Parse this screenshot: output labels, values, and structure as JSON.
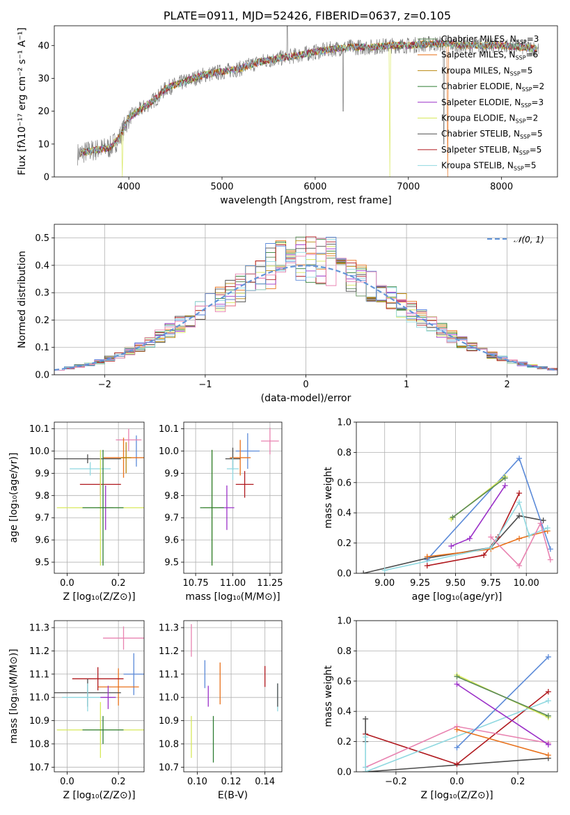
{
  "colors": {
    "Chabrier MILES": "#5b8a55",
    "Salpeter MILES": "#e8701a",
    "Kroupa MILES": "#b8860b",
    "Chabrier ELODIE": "#2e7d32",
    "Salpeter ELODIE": "#9b30c8",
    "Kroupa ELODIE": "#d7e85a",
    "Chabrier STELIB": "#4d4d4d",
    "Salpeter STELIB": "#b0191e",
    "Kroupa STELIB": "#8fd8e0",
    "extra_blue": "#5b8ad8",
    "extra_pink": "#e882b0",
    "normal_curve": "#6495d8"
  },
  "chart_data": [
    {
      "id": "spectrum",
      "type": "line",
      "title": "PLATE=0911, MJD=52426, FIBERID=0637, z=0.105",
      "xlabel": "wavelength [Angstrom, rest frame]",
      "ylabel": "Flux [fλ10⁻¹⁷ erg cm⁻² s⁻¹ A⁻¹]",
      "xlim": [
        3200,
        8600
      ],
      "ylim": [
        0,
        46
      ],
      "xticks": [
        4000,
        5000,
        6000,
        7000,
        8000
      ],
      "yticks": [
        0,
        10,
        20,
        30,
        40
      ],
      "legend_position": "top-right",
      "legend": [
        {
          "label": "Chabrier MILES, N",
          "sub": "SSP",
          "tail": "=3",
          "color": "#5b8a55"
        },
        {
          "label": "Salpeter MILES, N",
          "sub": "SSP",
          "tail": "=6",
          "color": "#e8701a"
        },
        {
          "label": "Kroupa MILES, N",
          "sub": "SSP",
          "tail": "=5",
          "color": "#b8860b"
        },
        {
          "label": "Chabrier ELODIE, N",
          "sub": "SSP",
          "tail": "=2",
          "color": "#2e7d32"
        },
        {
          "label": "Salpeter ELODIE, N",
          "sub": "SSP",
          "tail": "=3",
          "color": "#9b30c8"
        },
        {
          "label": "Kroupa ELODIE, N",
          "sub": "SSP",
          "tail": "=2",
          "color": "#d7e85a"
        },
        {
          "label": "Chabrier STELIB, N",
          "sub": "SSP",
          "tail": "=5",
          "color": "#4d4d4d"
        },
        {
          "label": "Salpeter STELIB, N",
          "sub": "SSP",
          "tail": "=5",
          "color": "#b0191e"
        },
        {
          "label": "Kroupa STELIB, N",
          "sub": "SSP",
          "tail": "=5",
          "color": "#8fd8e0"
        }
      ],
      "continuum": {
        "x": [
          3450,
          3600,
          3800,
          3900,
          4000,
          4100,
          4200,
          4300,
          4400,
          4600,
          4800,
          5000,
          5200,
          5400,
          5600,
          5800,
          6000,
          6200,
          6400,
          6600,
          6800,
          7000,
          7200,
          7400,
          7600,
          7800,
          8000,
          8200,
          8400
        ],
        "y": [
          7,
          8,
          9,
          12,
          18,
          20,
          22,
          24,
          27,
          29,
          31,
          32,
          33,
          35,
          36,
          37,
          38,
          39,
          39.5,
          39.5,
          40,
          40,
          40.5,
          40.5,
          40,
          40,
          40,
          39.5,
          39
        ]
      }
    },
    {
      "id": "residuals",
      "type": "histogram",
      "xlabel": "(data-model)/error",
      "ylabel": "Normed distribution",
      "xlim": [
        -2.5,
        2.5
      ],
      "ylim": [
        0,
        0.55
      ],
      "xticks": [
        -2,
        -1,
        0,
        1,
        2
      ],
      "yticks": [
        0,
        0.1,
        0.2,
        0.3,
        0.4,
        0.5
      ],
      "grid": true,
      "legend_position": "top-right",
      "legend": "𝒩(0, 1)",
      "bins": [
        -2.5,
        2.5,
        50
      ],
      "gaussian": {
        "mean": 0,
        "sigma": 1
      }
    },
    {
      "id": "age_vs_Z",
      "type": "scatter-errorbar",
      "xlabel": "Z [log₁₀(Z/Z⊙)]",
      "ylabel": "age  [log₁₀(age/yr)]",
      "xlim": [
        -0.05,
        0.3
      ],
      "ylim": [
        9.45,
        10.13
      ],
      "xticks": [
        0.0,
        0.2
      ],
      "yticks": [
        9.5,
        9.6,
        9.7,
        9.8,
        9.9,
        10.0,
        10.1
      ],
      "grid": true,
      "points": [
        {
          "x": 0.27,
          "y": 10.0,
          "xerr": 0.0,
          "yerr": 0.07,
          "color": "#5b8ad8"
        },
        {
          "x": 0.24,
          "y": 10.05,
          "xerr": 0.05,
          "yerr": 0.05,
          "color": "#e882b0"
        },
        {
          "x": 0.22,
          "y": 9.97,
          "xerr": 0.08,
          "yerr": 0.09,
          "color": "#e8701a"
        },
        {
          "x": 0.23,
          "y": 9.97,
          "xerr": 0.02,
          "yerr": 0.07,
          "color": "#b8860b"
        },
        {
          "x": 0.08,
          "y": 9.965,
          "xerr": 0.13,
          "yerr": 0.02,
          "color": "#4d4d4d"
        },
        {
          "x": 0.09,
          "y": 9.92,
          "xerr": 0.08,
          "yerr": 0.03,
          "color": "#8fd8e0"
        },
        {
          "x": 0.13,
          "y": 9.85,
          "xerr": 0.08,
          "yerr": 0.05,
          "color": "#b0191e"
        },
        {
          "x": 0.15,
          "y": 9.745,
          "xerr": 0.03,
          "yerr": 0.1,
          "color": "#9b30c8"
        },
        {
          "x": 0.13,
          "y": 9.745,
          "xerr": 0.17,
          "yerr": 0.26,
          "color": "#d7e85a"
        },
        {
          "x": 0.14,
          "y": 9.745,
          "xerr": 0.08,
          "yerr": 0.26,
          "color": "#2e7d32"
        }
      ]
    },
    {
      "id": "age_vs_mass",
      "type": "scatter-errorbar",
      "xlabel": "mass [log₁₀(M/M⊙)]",
      "ylabel": "",
      "xlim": [
        10.67,
        11.33
      ],
      "ylim": [
        9.45,
        10.13
      ],
      "xticks": [
        10.75,
        11.0,
        11.25
      ],
      "yticks": [
        9.5,
        9.6,
        9.7,
        9.8,
        9.9,
        10.0,
        10.1
      ],
      "grid": true,
      "points": [
        {
          "x": 11.25,
          "y": 10.045,
          "xerr": 0.06,
          "yerr": 0.06,
          "color": "#e882b0"
        },
        {
          "x": 11.1,
          "y": 10.0,
          "xerr": 0.08,
          "yerr": 0.08,
          "color": "#5b8ad8"
        },
        {
          "x": 11.05,
          "y": 9.97,
          "xerr": 0.07,
          "yerr": 0.08,
          "color": "#e8701a"
        },
        {
          "x": 11.0,
          "y": 9.965,
          "xerr": 0.05,
          "yerr": 0.05,
          "color": "#4d4d4d"
        },
        {
          "x": 11.0,
          "y": 9.92,
          "xerr": 0.04,
          "yerr": 0.05,
          "color": "#8fd8e0"
        },
        {
          "x": 11.08,
          "y": 9.85,
          "xerr": 0.06,
          "yerr": 0.06,
          "color": "#b0191e"
        },
        {
          "x": 10.96,
          "y": 9.745,
          "xerr": 0.05,
          "yerr": 0.1,
          "color": "#9b30c8"
        },
        {
          "x": 10.86,
          "y": 9.745,
          "xerr": 0.06,
          "yerr": 0.26,
          "color": "#d7e85a"
        },
        {
          "x": 10.86,
          "y": 9.745,
          "xerr": 0.08,
          "yerr": 0.26,
          "color": "#2e7d32"
        }
      ]
    },
    {
      "id": "massweight_vs_age",
      "type": "line",
      "xlabel": "age  [log₁₀(age/yr)]",
      "ylabel": "mass weight",
      "xlim": [
        8.8,
        10.22
      ],
      "ylim": [
        0,
        1.0
      ],
      "xticks": [
        9.0,
        9.25,
        9.5,
        9.75,
        10.0
      ],
      "yticks": [
        0,
        0.2,
        0.4,
        0.6,
        0.8,
        1.0
      ],
      "grid": true,
      "series": [
        {
          "color": "#4d4d4d",
          "x": [
            8.85,
            9.3,
            9.75,
            9.95,
            10.12
          ],
          "y": [
            0.0,
            0.1,
            0.17,
            0.38,
            0.35
          ]
        },
        {
          "color": "#5b8ad8",
          "x": [
            9.3,
            9.95,
            10.17
          ],
          "y": [
            0.09,
            0.76,
            0.16
          ]
        },
        {
          "color": "#d7e85a",
          "x": [
            9.47,
            9.85
          ],
          "y": [
            0.36,
            0.64
          ]
        },
        {
          "color": "#5b8a55",
          "x": [
            9.48,
            9.85
          ],
          "y": [
            0.37,
            0.63
          ]
        },
        {
          "color": "#9b30c8",
          "x": [
            9.47,
            9.6,
            9.85
          ],
          "y": [
            0.18,
            0.23,
            0.58
          ]
        },
        {
          "color": "#b0191e",
          "x": [
            9.3,
            9.7,
            9.8,
            9.95
          ],
          "y": [
            0.05,
            0.12,
            0.24,
            0.53
          ]
        },
        {
          "color": "#e8701a",
          "x": [
            9.3,
            9.75,
            9.95,
            10.15
          ],
          "y": [
            0.11,
            0.16,
            0.23,
            0.28
          ]
        },
        {
          "color": "#8fd8e0",
          "x": [
            9.0,
            9.75,
            9.95,
            10.02,
            10.15
          ],
          "y": [
            0.02,
            0.17,
            0.47,
            0.25,
            0.3
          ]
        },
        {
          "color": "#e882b0",
          "x": [
            9.75,
            9.95,
            10.1,
            10.17
          ],
          "y": [
            0.24,
            0.05,
            0.33,
            0.09
          ]
        }
      ]
    },
    {
      "id": "mass_vs_Z",
      "type": "scatter-errorbar",
      "xlabel": "Z [log₁₀(Z/Z⊙)]",
      "ylabel": "mass [log₁₀(M/M⊙)]",
      "xlim": [
        -0.05,
        0.3
      ],
      "ylim": [
        10.68,
        11.33
      ],
      "xticks": [
        0.0,
        0.2
      ],
      "yticks": [
        10.7,
        10.8,
        10.9,
        11.0,
        11.1,
        11.2,
        11.3
      ],
      "grid": true,
      "points": [
        {
          "x": 0.22,
          "y": 11.255,
          "xerr": 0.08,
          "yerr": 0.05,
          "color": "#e882b0"
        },
        {
          "x": 0.26,
          "y": 11.1,
          "xerr": 0.04,
          "yerr": 0.09,
          "color": "#5b8ad8"
        },
        {
          "x": 0.2,
          "y": 11.045,
          "xerr": 0.08,
          "yerr": 0.08,
          "color": "#e8701a"
        },
        {
          "x": 0.12,
          "y": 11.08,
          "xerr": 0.1,
          "yerr": 0.05,
          "color": "#b0191e"
        },
        {
          "x": 0.08,
          "y": 11.02,
          "xerr": 0.13,
          "yerr": 0.06,
          "color": "#4d4d4d"
        },
        {
          "x": 0.08,
          "y": 11.0,
          "xerr": 0.1,
          "yerr": 0.06,
          "color": "#8fd8e0"
        },
        {
          "x": 0.16,
          "y": 11.0,
          "xerr": 0.03,
          "yerr": 0.05,
          "color": "#9b30c8"
        },
        {
          "x": 0.13,
          "y": 10.86,
          "xerr": 0.17,
          "yerr": 0.12,
          "color": "#d7e85a"
        },
        {
          "x": 0.14,
          "y": 10.86,
          "xerr": 0.08,
          "yerr": 0.06,
          "color": "#2e7d32"
        }
      ]
    },
    {
      "id": "mass_vs_ebv",
      "type": "scatter-errorbar",
      "xlabel": "E(B-V)",
      "ylabel": "",
      "xlim": [
        0.092,
        0.15
      ],
      "ylim": [
        10.68,
        11.33
      ],
      "xticks": [
        0.1,
        0.12,
        0.14
      ],
      "yticks": [
        10.7,
        10.8,
        10.9,
        11.0,
        11.1,
        11.2,
        11.3
      ],
      "grid": true,
      "points": [
        {
          "x": 0.0965,
          "y": 11.245,
          "xerr": 0.0,
          "yerr": 0.07,
          "color": "#e882b0"
        },
        {
          "x": 0.1045,
          "y": 11.1,
          "xerr": 0.0,
          "yerr": 0.06,
          "color": "#5b8ad8"
        },
        {
          "x": 0.1135,
          "y": 11.06,
          "xerr": 0.0,
          "yerr": 0.09,
          "color": "#e8701a"
        },
        {
          "x": 0.1065,
          "y": 11.005,
          "xerr": 0.0,
          "yerr": 0.045,
          "color": "#9b30c8"
        },
        {
          "x": 0.14,
          "y": 11.09,
          "xerr": 0.0,
          "yerr": 0.045,
          "color": "#b0191e"
        },
        {
          "x": 0.1475,
          "y": 11.0,
          "xerr": 0.0,
          "yerr": 0.06,
          "color": "#8fd8e0"
        },
        {
          "x": 0.1475,
          "y": 11.01,
          "xerr": 0.0,
          "yerr": 0.05,
          "color": "#4d4d4d"
        },
        {
          "x": 0.0965,
          "y": 10.83,
          "xerr": 0.0,
          "yerr": 0.09,
          "color": "#d7e85a"
        },
        {
          "x": 0.1095,
          "y": 10.82,
          "xerr": 0.0,
          "yerr": 0.1,
          "color": "#2e7d32"
        }
      ]
    },
    {
      "id": "massweight_vs_Z",
      "type": "line",
      "xlabel": "Z [log₁₀(Z/Z⊙)]",
      "ylabel": "mass weight",
      "xlim": [
        -0.33,
        0.33
      ],
      "ylim": [
        0,
        1.0
      ],
      "xticks": [
        -0.2,
        0.0,
        0.2
      ],
      "yticks": [
        0,
        0.2,
        0.4,
        0.6,
        0.8,
        1.0
      ],
      "grid": true,
      "series": [
        {
          "color": "#4d4d4d",
          "x": [
            -0.3,
            0.3
          ],
          "y": [
            0.0,
            0.09
          ]
        },
        {
          "color": "#b0191e",
          "x": [
            -0.3,
            0.0,
            0.3
          ],
          "y": [
            0.25,
            0.05,
            0.53
          ]
        },
        {
          "color": "#e882b0",
          "x": [
            -0.3,
            0.0,
            0.3
          ],
          "y": [
            0.03,
            0.3,
            0.19
          ]
        },
        {
          "color": "#8fd8e0",
          "x": [
            -0.3,
            0.3
          ],
          "y": [
            0.0,
            0.47
          ]
        },
        {
          "color": "#5b8ad8",
          "x": [
            0.0,
            0.3
          ],
          "y": [
            0.16,
            0.76
          ]
        },
        {
          "color": "#e8701a",
          "x": [
            0.0,
            0.3
          ],
          "y": [
            0.28,
            0.11
          ]
        },
        {
          "color": "#d7e85a",
          "x": [
            0.0,
            0.3
          ],
          "y": [
            0.64,
            0.36
          ]
        },
        {
          "color": "#5b8a55",
          "x": [
            0.0,
            0.3
          ],
          "y": [
            0.63,
            0.37
          ]
        },
        {
          "color": "#9b30c8",
          "x": [
            0.0,
            0.3
          ],
          "y": [
            0.58,
            0.18
          ]
        },
        {
          "color": "#4d4d4d",
          "x": [
            -0.3,
            -0.3
          ],
          "y": [
            0.2,
            0.35
          ]
        },
        {
          "color": "#8fd8e0",
          "x": [
            -0.3,
            -0.3
          ],
          "y": [
            0.03,
            0.23
          ]
        }
      ]
    }
  ]
}
